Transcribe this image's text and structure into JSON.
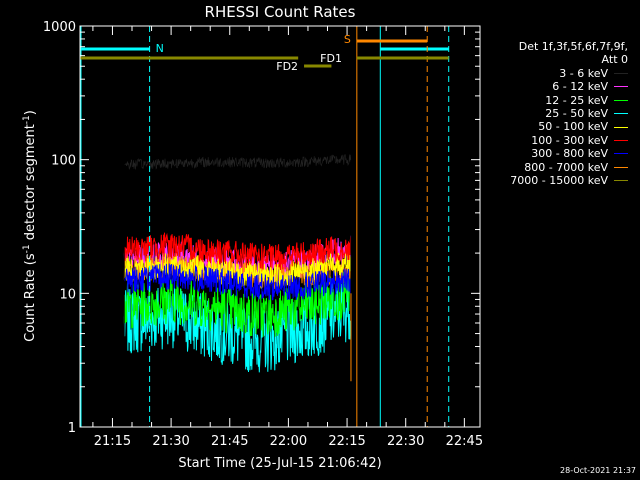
{
  "chart_data": {
    "type": "line",
    "title": "RHESSI Count Rates",
    "xlabel": "Start Time (25-Jul-15 21:06:42)",
    "ylabel_parts": [
      "Count Rate (s",
      "-1",
      " detector segment",
      "-1",
      ")"
    ],
    "x_unit": "minutes of day (HH:MM)",
    "xlim": [
      "21:06:42",
      "22:49:00"
    ],
    "x_ticks": [
      "21:15",
      "21:30",
      "21:45",
      "22:00",
      "22:15",
      "22:30",
      "22:45"
    ],
    "y_scale": "log",
    "ylim": [
      1,
      1000
    ],
    "y_ticks": [
      "1",
      "10",
      "100",
      "1000"
    ],
    "data_window": [
      "21:18:00",
      "22:16:00"
    ],
    "series": [
      {
        "name": "3 - 6 keV",
        "color": "#000000",
        "x": [
          "21:18",
          "21:25",
          "21:30",
          "21:35",
          "21:40",
          "21:45",
          "21:50",
          "21:55",
          "22:00",
          "22:05",
          "22:10",
          "22:16"
        ],
        "values": [
          92,
          93,
          94,
          95,
          96,
          96,
          95,
          94,
          95,
          97,
          99,
          100
        ]
      },
      {
        "name": "6 - 12 keV",
        "color": "#ff33ff",
        "x": [
          "21:18",
          "21:25",
          "21:30",
          "21:35",
          "21:40",
          "21:45",
          "21:50",
          "21:55",
          "22:00",
          "22:05",
          "22:10",
          "22:16"
        ],
        "values": [
          17,
          18,
          19,
          18,
          17,
          16,
          15,
          15,
          16,
          17,
          19,
          21
        ]
      },
      {
        "name": "12 - 25 keV",
        "color": "#00ff00",
        "x": [
          "21:18",
          "21:25",
          "21:30",
          "21:35",
          "21:40",
          "21:45",
          "21:50",
          "21:55",
          "22:00",
          "22:05",
          "22:10",
          "22:16"
        ],
        "values": [
          8,
          8.5,
          9,
          8.5,
          8,
          7.5,
          7,
          7,
          7.5,
          8,
          9,
          10
        ]
      },
      {
        "name": "25 - 50 keV",
        "color": "#00ffff",
        "x": [
          "21:18",
          "21:25",
          "21:30",
          "21:35",
          "21:40",
          "21:45",
          "21:50",
          "21:55",
          "22:00",
          "22:05",
          "22:10",
          "22:16"
        ],
        "values": [
          6,
          6.5,
          7,
          6,
          5.5,
          5,
          4.5,
          4.5,
          5,
          5.5,
          6.5,
          8
        ]
      },
      {
        "name": "50 - 100 keV",
        "color": "#ffff00",
        "x": [
          "21:18",
          "21:25",
          "21:30",
          "21:35",
          "21:40",
          "21:45",
          "21:50",
          "21:55",
          "22:00",
          "22:05",
          "22:10",
          "22:16"
        ],
        "values": [
          15,
          15.5,
          16,
          15.5,
          15,
          14,
          13.5,
          13.5,
          14,
          15,
          16,
          17
        ]
      },
      {
        "name": "100 - 300 keV",
        "color": "#ff0000",
        "x": [
          "21:18",
          "21:25",
          "21:30",
          "21:35",
          "21:40",
          "21:45",
          "21:50",
          "21:55",
          "22:00",
          "22:05",
          "22:10",
          "22:16"
        ],
        "values": [
          21,
          22,
          23,
          22,
          21,
          20,
          19,
          18.5,
          19,
          20,
          21,
          22
        ]
      },
      {
        "name": "300 - 800 keV",
        "color": "#0000ff",
        "x": [
          "21:18",
          "21:25",
          "21:30",
          "21:35",
          "21:40",
          "21:45",
          "21:50",
          "21:55",
          "22:00",
          "22:05",
          "22:10",
          "22:16"
        ],
        "values": [
          12.5,
          13,
          13.5,
          13,
          12.5,
          12,
          11.5,
          11,
          11,
          11.5,
          12,
          12.5
        ]
      },
      {
        "name": "800 - 7000 keV",
        "color": "#ff8800",
        "x": [
          "21:18",
          "21:25",
          "21:30",
          "21:35",
          "21:40",
          "21:45",
          "21:50",
          "21:55",
          "22:00",
          "22:05",
          "22:10",
          "22:16"
        ],
        "values": [
          15,
          15.5,
          16,
          15.5,
          15,
          14.5,
          14,
          13.5,
          13.5,
          14,
          14.5,
          15
        ]
      },
      {
        "name": "7000 - 15000 keV",
        "color": "#888800",
        "x": [],
        "values": []
      }
    ],
    "legend_header": [
      "Det 1f,3f,5f,6f,7f,9f,",
      "Att 0"
    ],
    "legend_position": "right",
    "annotations": {
      "night": {
        "label": "N",
        "color": "#00ffff",
        "starts": [
          "21:06:42",
          "22:23:30"
        ],
        "ends": [
          "21:24:30",
          "22:41:00"
        ]
      },
      "saa": {
        "label": "S",
        "color": "#ff8800",
        "starts": [
          "22:17:30"
        ],
        "ends": [
          "22:35:30"
        ]
      },
      "flare_decimation": {
        "labels": [
          "FD1",
          "FD2"
        ],
        "color": "#888800",
        "segments": [
          [
            "21:06:42",
            "22:02:30"
          ],
          [
            "22:04:00",
            "22:11:00"
          ],
          [
            "22:17:30",
            "22:41:00"
          ]
        ],
        "gap_segment": [
          "22:04:00",
          "22:11:00"
        ]
      }
    }
  },
  "timestamp": "28-Oct-2021 21:37"
}
